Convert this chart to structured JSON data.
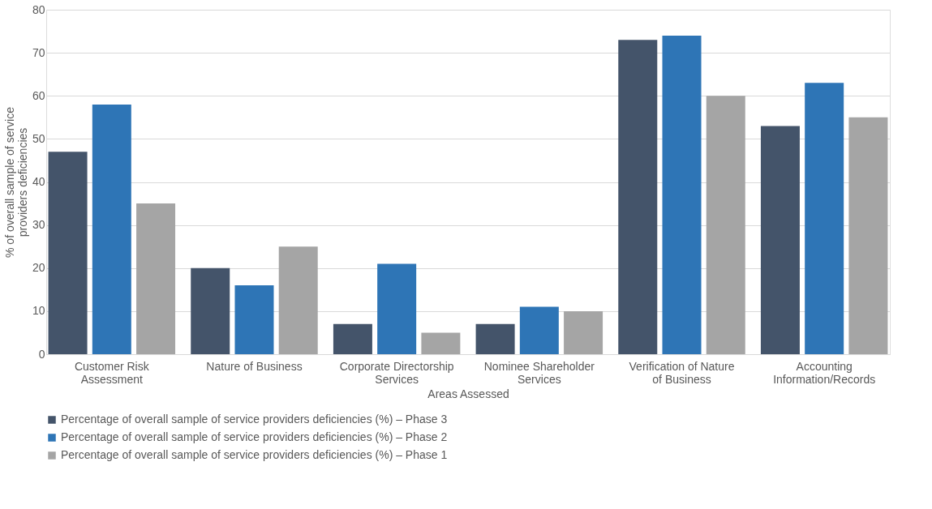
{
  "chart_data": {
    "type": "bar",
    "xlabel": "Areas Assessed",
    "ylabel": "% of overall sample of service providers deficiencies",
    "categories": [
      "Customer Risk Assessment",
      "Nature of Business",
      "Corporate Directorship Services",
      "Nominee Shareholder Services",
      "Verification of Nature of Business",
      "Accounting Information/Records"
    ],
    "series": [
      {
        "name": "Percentage of overall sample of service providers deficiencies  (%) – Phase 3",
        "color": "#44546a",
        "values": [
          47,
          20,
          7,
          7,
          73,
          53
        ]
      },
      {
        "name": "Percentage of overall sample of service providers deficiencies  (%) – Phase 2",
        "color": "#2e75b6",
        "values": [
          58,
          16,
          21,
          11,
          74,
          63
        ]
      },
      {
        "name": "Percentage of overall sample of service providers deficiencies  (%) – Phase 1",
        "color": "#a5a5a5",
        "values": [
          35,
          25,
          5,
          10,
          60,
          55
        ]
      }
    ],
    "ylim": [
      0,
      80
    ],
    "yticks": [
      0,
      10,
      20,
      30,
      40,
      50,
      60,
      70,
      80
    ],
    "grid": "y",
    "legend": "bottom"
  }
}
